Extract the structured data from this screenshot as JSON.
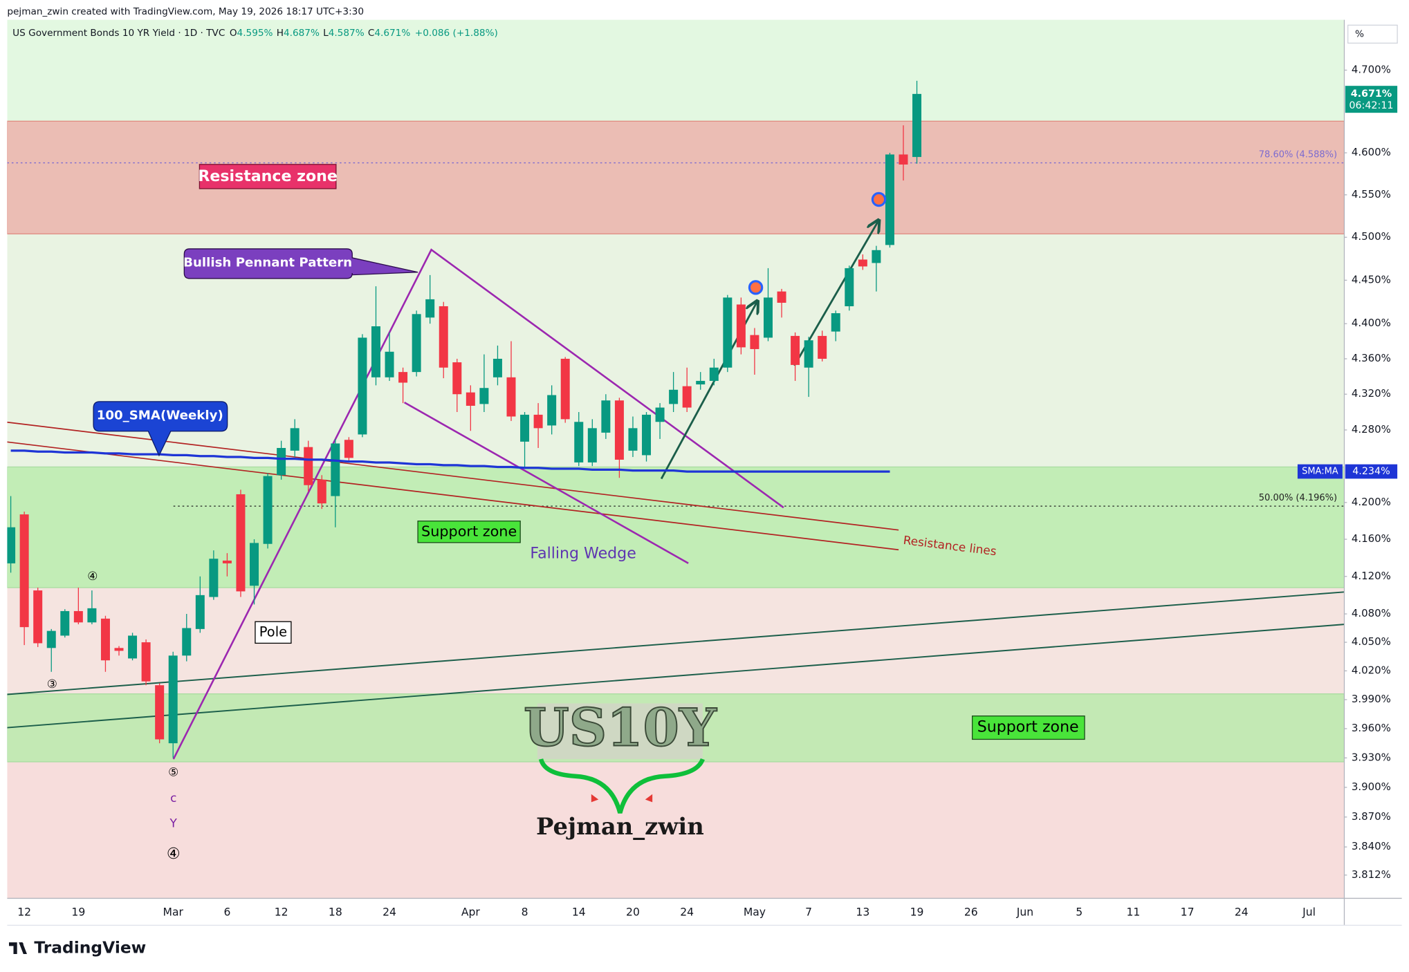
{
  "chart_data": {
    "type": "candlestick",
    "title": "US Government Bonds 10 YR Yield · 1D · TVC",
    "credit": "pejman_zwin created with TradingView.com, May 19, 2026 18:17 UTC+3:30",
    "ohlc_legend": [
      {
        "key": "O",
        "value": "4.595%"
      },
      {
        "key": "H",
        "value": "4.687%"
      },
      {
        "key": "L",
        "value": "4.587%"
      },
      {
        "key": "C",
        "value": "4.671%"
      }
    ],
    "change": "+0.086 (+1.88%)",
    "unit": "%",
    "footer": "TradingView",
    "log_scale": true,
    "up_color": "#089981",
    "down_color": "#f23645",
    "categories": [
      null,
      "12",
      null,
      null,
      null,
      "19",
      null,
      null,
      null,
      null,
      null,
      null,
      "Mar",
      null,
      null,
      null,
      "6",
      null,
      null,
      null,
      "12",
      null,
      null,
      null,
      "18",
      null,
      null,
      null,
      "24",
      null,
      null,
      null,
      null,
      null,
      "Apr",
      null,
      null,
      null,
      "8",
      null,
      null,
      null,
      "14",
      null,
      null,
      null,
      "20",
      null,
      null,
      null,
      "24",
      null,
      null,
      null,
      null,
      "May",
      null,
      null,
      null,
      "7",
      null,
      null,
      null,
      "13",
      null,
      null,
      null,
      "19",
      null,
      null,
      null,
      "26",
      null,
      null,
      null,
      "Jun",
      null,
      null,
      null,
      "5",
      null,
      null,
      null,
      "11",
      null,
      null,
      null,
      "17",
      null,
      null,
      null,
      "24",
      null,
      null,
      null,
      null,
      "Jul",
      null,
      null
    ],
    "open": [
      4.134,
      4.187,
      4.105,
      4.044,
      4.057,
      4.083,
      4.071,
      4.075,
      4.044,
      4.033,
      4.05,
      4.005,
      3.945,
      4.036,
      4.064,
      4.098,
      4.137,
      4.209,
      4.11,
      4.155,
      4.23,
      4.257,
      4.261,
      4.225,
      4.207,
      4.269,
      4.275,
      4.339,
      4.339,
      4.345,
      4.345,
      4.407,
      4.42,
      4.356,
      4.322,
      4.309,
      4.339,
      4.339,
      4.267,
      4.297,
      4.285,
      4.36,
      4.244,
      4.244,
      4.277,
      4.313,
      4.257,
      4.252,
      4.289,
      4.309,
      4.329,
      4.331,
      4.335,
      4.35,
      4.422,
      4.387,
      4.384,
      4.437,
      4.386,
      4.35,
      4.386,
      4.391,
      4.42,
      4.474,
      4.47,
      4.491,
      4.598,
      4.595,
      null,
      null,
      null,
      null,
      null,
      null,
      null,
      null,
      null,
      null,
      null,
      null,
      null,
      null,
      null,
      null,
      null,
      null,
      null,
      null,
      null,
      null,
      null,
      null,
      null,
      null,
      null,
      null,
      null,
      null,
      null
    ],
    "high": [
      4.207,
      4.19,
      4.108,
      4.064,
      4.085,
      4.108,
      4.105,
      4.078,
      4.046,
      4.06,
      4.053,
      4.007,
      4.04,
      4.08,
      4.12,
      4.148,
      4.145,
      4.214,
      4.16,
      4.232,
      4.268,
      4.292,
      4.268,
      4.23,
      4.27,
      4.272,
      4.388,
      4.443,
      4.39,
      4.35,
      4.415,
      4.456,
      4.425,
      4.36,
      4.33,
      4.365,
      4.375,
      4.38,
      4.3,
      4.31,
      4.33,
      4.362,
      4.3,
      4.292,
      4.32,
      4.316,
      4.295,
      4.3,
      4.31,
      4.345,
      4.35,
      4.345,
      4.36,
      4.433,
      4.43,
      4.395,
      4.464,
      4.44,
      4.39,
      4.385,
      4.392,
      4.415,
      4.467,
      4.48,
      4.49,
      4.6,
      4.633,
      4.687,
      null,
      null,
      null,
      null,
      null,
      null,
      null,
      null,
      null,
      null,
      null,
      null,
      null,
      null,
      null,
      null,
      null,
      null,
      null,
      null,
      null,
      null,
      null,
      null,
      null,
      null,
      null,
      null,
      null,
      null,
      null
    ],
    "low": [
      4.124,
      4.047,
      4.045,
      4.019,
      4.055,
      4.069,
      4.069,
      4.019,
      4.036,
      4.031,
      4.005,
      3.945,
      3.93,
      4.03,
      4.06,
      4.095,
      4.12,
      4.098,
      4.09,
      4.15,
      4.225,
      4.25,
      4.212,
      4.193,
      4.173,
      4.245,
      4.272,
      4.33,
      4.335,
      4.31,
      4.34,
      4.4,
      4.338,
      4.3,
      4.279,
      4.3,
      4.33,
      4.29,
      4.237,
      4.26,
      4.275,
      4.288,
      4.24,
      4.24,
      4.27,
      4.227,
      4.25,
      4.245,
      4.27,
      4.3,
      4.3,
      4.325,
      4.33,
      4.345,
      4.365,
      4.342,
      4.38,
      4.407,
      4.335,
      4.317,
      4.357,
      4.38,
      4.415,
      4.462,
      4.437,
      4.488,
      4.567,
      4.587,
      null,
      null,
      null,
      null,
      null,
      null,
      null,
      null,
      null,
      null,
      null,
      null,
      null,
      null,
      null,
      null,
      null,
      null,
      null,
      null,
      null,
      null,
      null,
      null,
      null,
      null,
      null,
      null,
      null,
      null,
      null
    ],
    "close": [
      4.173,
      4.066,
      4.049,
      4.062,
      4.083,
      4.071,
      4.086,
      4.031,
      4.041,
      4.057,
      4.009,
      3.949,
      4.036,
      4.065,
      4.1,
      4.139,
      4.134,
      4.104,
      4.156,
      4.229,
      4.26,
      4.282,
      4.219,
      4.199,
      4.265,
      4.249,
      4.384,
      4.397,
      4.368,
      4.333,
      4.411,
      4.428,
      4.35,
      4.32,
      4.307,
      4.327,
      4.36,
      4.295,
      4.297,
      4.282,
      4.319,
      4.292,
      4.289,
      4.282,
      4.313,
      4.247,
      4.282,
      4.297,
      4.305,
      4.325,
      4.305,
      4.335,
      4.35,
      4.43,
      4.373,
      4.371,
      4.43,
      4.424,
      4.353,
      4.381,
      4.36,
      4.412,
      4.464,
      4.466,
      4.485,
      4.598,
      4.586,
      4.671,
      null,
      null,
      null,
      null,
      null,
      null,
      null,
      null,
      null,
      null,
      null,
      null,
      null,
      null,
      null,
      null,
      null,
      null,
      null,
      null,
      null,
      null,
      null,
      null,
      null,
      null,
      null,
      null,
      null,
      null,
      null
    ],
    "sma": {
      "name": "SMA:MA",
      "color": "#1e35d6",
      "last": {
        "value": 4.234,
        "label": "4.234%"
      },
      "values": [
        4.257,
        4.257,
        4.256,
        4.256,
        4.255,
        4.255,
        4.255,
        4.254,
        4.254,
        4.253,
        4.253,
        4.253,
        4.252,
        4.252,
        4.251,
        4.251,
        4.25,
        4.25,
        4.249,
        4.249,
        4.248,
        4.248,
        4.247,
        4.247,
        4.246,
        4.245,
        4.245,
        4.244,
        4.244,
        4.243,
        4.242,
        4.242,
        4.241,
        4.241,
        4.24,
        4.24,
        4.239,
        4.239,
        4.238,
        4.238,
        4.237,
        4.237,
        4.237,
        4.236,
        4.236,
        4.236,
        4.235,
        4.235,
        4.235,
        4.235,
        4.234,
        4.234,
        4.234,
        4.234,
        4.234,
        4.234,
        4.234,
        4.234,
        4.234,
        4.234,
        4.234,
        4.234,
        4.234,
        4.234,
        4.234,
        4.234,
        null,
        null,
        null,
        null,
        null,
        null,
        null,
        null,
        null,
        null,
        null,
        null,
        null,
        null,
        null,
        null,
        null,
        null,
        null,
        null,
        null,
        null,
        null,
        null,
        null,
        null,
        null,
        null,
        null,
        null,
        null,
        null,
        null
      ]
    },
    "last_price": {
      "value": 4.671,
      "label": "4.671%",
      "countdown": "06:42:11"
    },
    "ylim": [
      3.789,
      4.762
    ],
    "yticks": [
      {
        "value": 4.7,
        "label": "4.700%"
      },
      {
        "value": 4.6,
        "label": "4.600%"
      },
      {
        "value": 4.55,
        "label": "4.550%"
      },
      {
        "value": 4.5,
        "label": "4.500%"
      },
      {
        "value": 4.45,
        "label": "4.450%"
      },
      {
        "value": 4.4,
        "label": "4.400%"
      },
      {
        "value": 4.36,
        "label": "4.360%"
      },
      {
        "value": 4.32,
        "label": "4.320%"
      },
      {
        "value": 4.28,
        "label": "4.280%"
      },
      {
        "value": 4.2,
        "label": "4.200%"
      },
      {
        "value": 4.16,
        "label": "4.160%"
      },
      {
        "value": 4.12,
        "label": "4.120%"
      },
      {
        "value": 4.08,
        "label": "4.080%"
      },
      {
        "value": 4.05,
        "label": "4.050%"
      },
      {
        "value": 4.02,
        "label": "4.020%"
      },
      {
        "value": 3.99,
        "label": "3.990%"
      },
      {
        "value": 3.96,
        "label": "3.960%"
      },
      {
        "value": 3.93,
        "label": "3.930%"
      },
      {
        "value": 3.9,
        "label": "3.900%"
      },
      {
        "value": 3.87,
        "label": "3.870%"
      },
      {
        "value": 3.84,
        "label": "3.840%"
      },
      {
        "value": 3.812,
        "label": "3.812%"
      }
    ],
    "fib_levels": [
      {
        "value": 4.588,
        "label": "78.60% (4.588%)",
        "color": "#7c6bd0"
      },
      {
        "value": 4.196,
        "label": "50.00% (4.196%)",
        "color": "#222222"
      }
    ],
    "zones": [
      {
        "label": "Resistance zone",
        "low": 4.504,
        "high": 4.638,
        "color": "#ebbdb4"
      },
      {
        "label": "Support zone",
        "low": 4.108,
        "high": 4.239,
        "color": "#c2edb6"
      },
      {
        "label": "Support zone",
        "low": 3.926,
        "high": 3.996,
        "color": "#c3e9b4"
      }
    ],
    "annotations": {
      "bullish_pennant": "Bullish Pennant Pattern",
      "sma_callout": "100_SMA(Weekly)",
      "falling_wedge": "Falling Wedge",
      "resistance_lines": "Resistance lines",
      "pole": "Pole",
      "logo": "US10Y",
      "author": "Pejman_zwin",
      "waves": [
        "④",
        "③",
        "⑤",
        "c",
        "Y",
        "④"
      ]
    }
  }
}
